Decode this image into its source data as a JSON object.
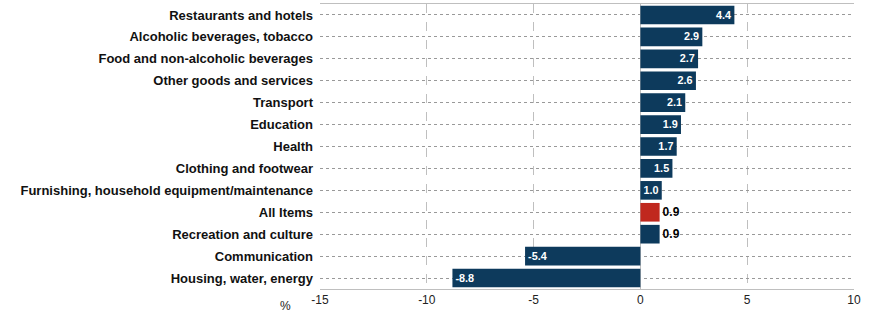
{
  "chart_data": {
    "type": "bar",
    "orientation": "horizontal",
    "categories": [
      "Restaurants and hotels",
      "Alcoholic beverages, tobacco",
      "Food and non-alcoholic beverages",
      "Other goods and services",
      "Transport",
      "Education",
      "Health",
      "Clothing and footwear",
      "Furnishing, household equipment/maintenance",
      "All Items",
      "Recreation and culture",
      "Communication",
      "Housing, water, energy"
    ],
    "values": [
      4.4,
      2.9,
      2.7,
      2.6,
      2.1,
      1.9,
      1.7,
      1.5,
      1.0,
      0.9,
      0.9,
      -5.4,
      -8.8
    ],
    "value_labels": [
      "4.4",
      "2.9",
      "2.7",
      "2.6",
      "2.1",
      "1.9",
      "1.7",
      "1.5",
      "1.0",
      "0.9",
      "0.9",
      "-5.4",
      "-8.8"
    ],
    "colors": [
      "#0d3a5c",
      "#0d3a5c",
      "#0d3a5c",
      "#0d3a5c",
      "#0d3a5c",
      "#0d3a5c",
      "#0d3a5c",
      "#0d3a5c",
      "#0d3a5c",
      "#c0281e",
      "#0d3a5c",
      "#0d3a5c",
      "#0d3a5c"
    ],
    "x_label": "%",
    "xlim": [
      -15,
      10
    ],
    "xticks": [
      -15,
      -10,
      -5,
      0,
      5,
      10
    ],
    "grid": true,
    "data_labels": true
  }
}
